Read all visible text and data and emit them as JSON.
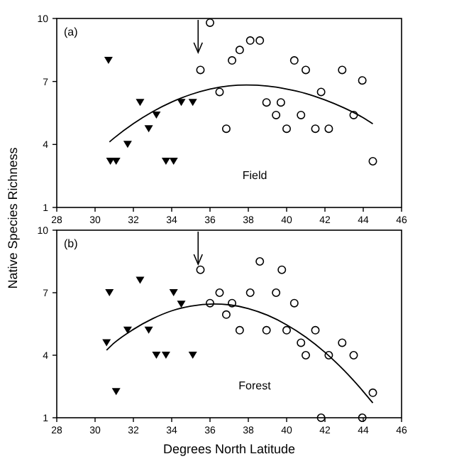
{
  "chart_data": [
    {
      "type": "scatter",
      "ylabel": "Native Species Richness",
      "annotations": [
        "(a)",
        "Field"
      ],
      "xlim": [
        28,
        46
      ],
      "xticks": [
        28,
        30,
        32,
        34,
        36,
        38,
        40,
        42,
        44,
        46
      ],
      "ylim": [
        1,
        10
      ],
      "yticks": [
        1,
        4,
        7,
        10
      ],
      "grid": false,
      "series": [
        {
          "color": "#000000",
          "marker": "triangle",
          "x": [
            30.7,
            30.8,
            31.1,
            31.7,
            32.35,
            32.8,
            33.2,
            33.7,
            34.1,
            34.5,
            35.1
          ],
          "values": [
            8.0,
            3.2,
            3.2,
            4.0,
            6.0,
            4.75,
            5.4,
            3.2,
            3.2,
            6.0,
            6.0
          ]
        },
        {
          "color": "#000000",
          "marker": "circle",
          "x": [
            36.0,
            35.5,
            36.5,
            36.85,
            37.15,
            37.55,
            38.1,
            38.6,
            38.95,
            39.7,
            39.45,
            40.0,
            40.4,
            40.75,
            41.0,
            41.5,
            41.8,
            42.2,
            42.9,
            43.5,
            43.95,
            44.5
          ],
          "values": [
            9.8,
            7.55,
            6.5,
            4.75,
            8.0,
            8.5,
            8.95,
            8.95,
            6.0,
            6.0,
            5.4,
            4.75,
            8.0,
            5.4,
            7.55,
            4.75,
            6.5,
            4.75,
            7.55,
            5.4,
            7.05,
            3.2
          ]
        },
        {
          "type": "line",
          "color": "#000000",
          "marker": "none",
          "line_style": "solid",
          "x": [
            30.75,
            31,
            32,
            33,
            34,
            35,
            36,
            37,
            37.9,
            39,
            40,
            41,
            42,
            43,
            44,
            44.5
          ],
          "values": [
            4.12,
            4.31,
            4.99,
            5.56,
            6.02,
            6.38,
            6.64,
            6.79,
            6.83,
            6.78,
            6.64,
            6.43,
            6.12,
            5.74,
            5.27,
            4.98
          ]
        }
      ]
    },
    {
      "type": "scatter",
      "xlabel": "Degrees North Latitude",
      "annotations": [
        "(b)",
        "Forest"
      ],
      "xlim": [
        28,
        46
      ],
      "xticks": [
        28,
        30,
        32,
        34,
        36,
        38,
        40,
        42,
        44,
        46
      ],
      "ylim": [
        1,
        10
      ],
      "yticks": [
        1,
        4,
        7,
        10
      ],
      "grid": false,
      "series": [
        {
          "color": "#000000",
          "marker": "triangle",
          "x": [
            30.75,
            30.6,
            31.1,
            31.7,
            32.35,
            32.8,
            33.2,
            33.7,
            34.1,
            34.5,
            35.1
          ],
          "values": [
            7.0,
            4.6,
            2.25,
            5.2,
            7.6,
            5.2,
            4.0,
            4.0,
            7.0,
            6.45,
            4.0
          ]
        },
        {
          "color": "#000000",
          "marker": "circle",
          "x": [
            35.5,
            36.0,
            36.5,
            36.85,
            37.15,
            37.55,
            38.1,
            38.6,
            38.95,
            39.45,
            39.75,
            40.0,
            40.4,
            40.75,
            41.0,
            41.5,
            41.8,
            42.2,
            42.9,
            43.5,
            43.95,
            44.5
          ],
          "values": [
            8.1,
            6.5,
            7.0,
            5.95,
            6.5,
            5.2,
            7.0,
            8.5,
            5.2,
            7.0,
            8.1,
            5.2,
            6.5,
            4.6,
            4.0,
            5.2,
            1.0,
            4.0,
            4.6,
            4.0,
            1.0,
            2.2
          ]
        },
        {
          "type": "line",
          "color": "#000000",
          "marker": "none",
          "line_style": "solid",
          "x": [
            30.6,
            31,
            32,
            33,
            34,
            35,
            36.2,
            37,
            38,
            39,
            40,
            41,
            42,
            43,
            44,
            44.5
          ],
          "values": [
            4.24,
            4.59,
            5.24,
            5.75,
            6.13,
            6.36,
            6.46,
            6.42,
            6.24,
            5.92,
            5.46,
            4.87,
            4.14,
            3.27,
            2.26,
            1.71
          ]
        }
      ]
    }
  ]
}
